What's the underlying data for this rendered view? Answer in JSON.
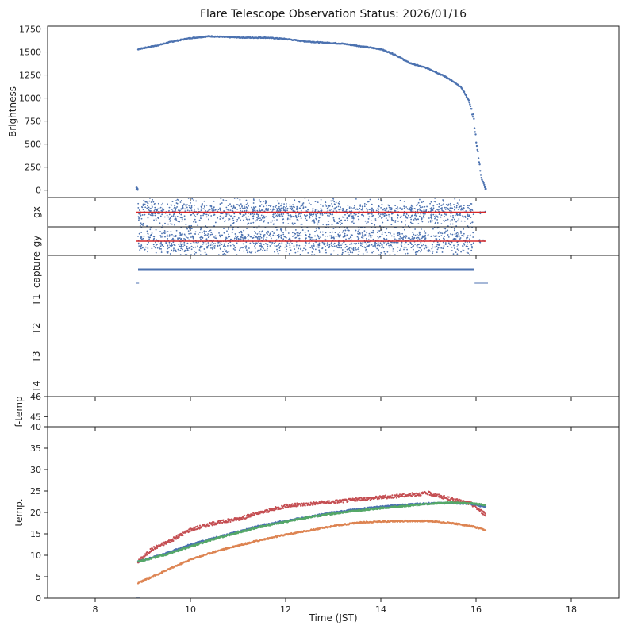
{
  "title": "Flare Telescope Observation Status: 2026/01/16",
  "colors": {
    "blue": "#4c72b0",
    "orange": "#dd8452",
    "green": "#55a868",
    "red": "#c44e52",
    "refline": "#d62728"
  },
  "chart_data": {
    "type": "scatter",
    "shared_x": {
      "label": "Time (JST)",
      "range": [
        7,
        19
      ],
      "ticks": [
        8,
        10,
        12,
        14,
        16,
        18
      ],
      "tick_labels": [
        "8",
        "10",
        "12",
        "14",
        "16",
        "18"
      ]
    },
    "panels": [
      {
        "name": "brightness",
        "ylabel": "Brightness",
        "ylim": [
          -80,
          1780
        ],
        "yticks": [
          0,
          250,
          500,
          750,
          1000,
          1250,
          1500,
          1750
        ],
        "ytick_labels": [
          "0",
          "250",
          "500",
          "750",
          "1000",
          "1250",
          "1500",
          "1750"
        ],
        "series": [
          {
            "color": "blue",
            "x": [
              8.88,
              8.9,
              9.0,
              9.3,
              9.6,
              10.0,
              10.4,
              10.8,
              11.2,
              11.6,
              12.0,
              12.4,
              12.8,
              13.2,
              13.6,
              14.0,
              14.3,
              14.6,
              15.0,
              15.4,
              15.7,
              15.85,
              15.95,
              16.0,
              16.05,
              16.1,
              16.2
            ],
            "y": [
              30,
              1530,
              1540,
              1570,
              1610,
              1650,
              1670,
              1660,
              1655,
              1655,
              1640,
              1615,
              1600,
              1590,
              1560,
              1530,
              1470,
              1380,
              1320,
              1220,
              1110,
              970,
              790,
              560,
              350,
              180,
              10
            ]
          }
        ]
      },
      {
        "name": "gx",
        "ylabel": "gx",
        "ylim": [
          -1,
          1
        ],
        "yticks": [],
        "reference_value": 0,
        "scatter_window": [
          8.9,
          16.2
        ],
        "scatter_spread": 0.4,
        "series": [
          {
            "color": "blue"
          }
        ]
      },
      {
        "name": "gy",
        "ylabel": "gy",
        "ylim": [
          -1,
          1
        ],
        "yticks": [],
        "reference_value": 0,
        "scatter_window": [
          8.9,
          16.2
        ],
        "scatter_spread": 0.5,
        "series": [
          {
            "color": "blue"
          }
        ]
      },
      {
        "name": "status",
        "rows": [
          "capture",
          "T1",
          "T2",
          "T3",
          "T4"
        ],
        "series": [
          {
            "row": "capture",
            "color": "blue",
            "x": [
              8.9,
              15.95
            ]
          },
          {
            "row": "capture-aux",
            "color": "blue",
            "x": [
              8.85,
              8.9
            ]
          },
          {
            "row": "capture-aux",
            "color": "blue",
            "x": [
              15.97,
              16.25
            ]
          }
        ]
      },
      {
        "name": "f-temp",
        "ylabel": "f-temp",
        "ylim": [
          44.5,
          46
        ],
        "yticks": [
          45,
          46
        ],
        "ytick_labels": [
          "45",
          "46"
        ]
      },
      {
        "name": "temp",
        "ylabel": "temp.",
        "ylim": [
          0,
          40
        ],
        "yticks": [
          0,
          5,
          10,
          15,
          20,
          25,
          30,
          35,
          40
        ],
        "ytick_labels": [
          "0",
          "5",
          "10",
          "15",
          "20",
          "25",
          "30",
          "35",
          "40"
        ],
        "series": [
          {
            "color": "red",
            "x": [
              8.9,
              9.2,
              9.6,
              10.0,
              10.5,
              11.0,
              11.5,
              12.0,
              12.5,
              13.0,
              13.5,
              14.0,
              14.5,
              15.0,
              15.5,
              15.9,
              16.2
            ],
            "y": [
              8.5,
              11.5,
              13.5,
              16,
              17.5,
              18.5,
              20,
              21.5,
              22,
              22.5,
              23,
              23.5,
              24,
              24.5,
              23,
              22,
              19.5
            ]
          },
          {
            "color": "blue",
            "x": [
              8.9,
              9.5,
              10.0,
              10.5,
              11.0,
              11.5,
              12.0,
              12.5,
              13.0,
              13.5,
              14.0,
              14.5,
              15.0,
              15.5,
              15.9,
              16.2
            ],
            "y": [
              8.5,
              10.5,
              12.5,
              14,
              15.5,
              17,
              18,
              19,
              20,
              20.7,
              21.3,
              21.8,
              22.1,
              22.2,
              22,
              21.2
            ]
          },
          {
            "color": "green",
            "x": [
              8.9,
              9.5,
              10.0,
              10.5,
              11.0,
              11.5,
              12.0,
              12.5,
              13.0,
              13.5,
              14.0,
              14.5,
              15.0,
              15.5,
              15.9,
              16.2
            ],
            "y": [
              8.5,
              10.2,
              12,
              13.8,
              15.3,
              16.7,
              17.8,
              18.9,
              19.7,
              20.4,
              21,
              21.5,
              22,
              22.3,
              22.1,
              21.7
            ]
          },
          {
            "color": "orange",
            "x": [
              8.9,
              9.2,
              9.6,
              10.0,
              10.5,
              11.0,
              11.5,
              12.0,
              12.5,
              13.0,
              13.5,
              14.0,
              14.5,
              15.0,
              15.5,
              15.9,
              16.2
            ],
            "y": [
              3.5,
              5,
              7,
              9,
              10.8,
              12.3,
              13.6,
              14.8,
              15.8,
              16.8,
              17.6,
              17.9,
              18,
              18,
              17.5,
              16.8,
              15.8
            ]
          }
        ]
      }
    ]
  }
}
